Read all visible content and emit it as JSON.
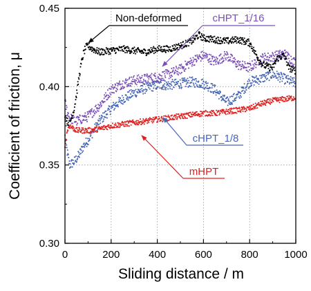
{
  "chart_data": {
    "type": "scatter",
    "title": "",
    "xlabel": "Sliding distance  /  m",
    "ylabel": "Coefficient of friction,  μ",
    "xlim": [
      0,
      1000
    ],
    "ylim": [
      0.3,
      0.45
    ],
    "x_ticks": [
      "0",
      "200",
      "400",
      "600",
      "800",
      "1000"
    ],
    "y_ticks": [
      "0.30",
      "0.35",
      "0.40",
      "0.45"
    ],
    "grid": "dotted",
    "legend": "none (series labelled by annotation arrows)",
    "series": [
      {
        "name": "Non-deformed",
        "color": "#000000",
        "label_color": "#000000",
        "points": [
          [
            0,
            0.382
          ],
          [
            10,
            0.378
          ],
          [
            20,
            0.376
          ],
          [
            30,
            0.381
          ],
          [
            40,
            0.386
          ],
          [
            50,
            0.395
          ],
          [
            60,
            0.405
          ],
          [
            70,
            0.414
          ],
          [
            80,
            0.421
          ],
          [
            90,
            0.425
          ],
          [
            100,
            0.426
          ],
          [
            120,
            0.424
          ],
          [
            150,
            0.422
          ],
          [
            200,
            0.423
          ],
          [
            250,
            0.424
          ],
          [
            300,
            0.423
          ],
          [
            350,
            0.422
          ],
          [
            400,
            0.424
          ],
          [
            450,
            0.424
          ],
          [
            500,
            0.426
          ],
          [
            550,
            0.429
          ],
          [
            580,
            0.433
          ],
          [
            600,
            0.431
          ],
          [
            650,
            0.43
          ],
          [
            700,
            0.429
          ],
          [
            750,
            0.43
          ],
          [
            800,
            0.428
          ],
          [
            830,
            0.42
          ],
          [
            850,
            0.415
          ],
          [
            870,
            0.413
          ],
          [
            900,
            0.412
          ],
          [
            920,
            0.418
          ],
          [
            950,
            0.42
          ],
          [
            970,
            0.412
          ],
          [
            1000,
            0.41
          ]
        ]
      },
      {
        "name": "cHPT_1/16",
        "color": "#7a4fb8",
        "label_color": "#7a4fb8",
        "points": [
          [
            0,
            0.39
          ],
          [
            10,
            0.384
          ],
          [
            20,
            0.38
          ],
          [
            50,
            0.378
          ],
          [
            100,
            0.381
          ],
          [
            150,
            0.388
          ],
          [
            200,
            0.398
          ],
          [
            250,
            0.402
          ],
          [
            300,
            0.404
          ],
          [
            350,
            0.405
          ],
          [
            400,
            0.406
          ],
          [
            450,
            0.408
          ],
          [
            500,
            0.411
          ],
          [
            550,
            0.416
          ],
          [
            600,
            0.42
          ],
          [
            650,
            0.416
          ],
          [
            700,
            0.42
          ],
          [
            750,
            0.414
          ],
          [
            800,
            0.412
          ],
          [
            850,
            0.418
          ],
          [
            900,
            0.419
          ],
          [
            950,
            0.421
          ],
          [
            1000,
            0.415
          ]
        ]
      },
      {
        "name": "cHPT_1/8",
        "color": "#4565b8",
        "label_color": "#4565b8",
        "points": [
          [
            0,
            0.368
          ],
          [
            10,
            0.358
          ],
          [
            20,
            0.35
          ],
          [
            40,
            0.352
          ],
          [
            60,
            0.356
          ],
          [
            80,
            0.362
          ],
          [
            100,
            0.366
          ],
          [
            150,
            0.378
          ],
          [
            200,
            0.386
          ],
          [
            250,
            0.392
          ],
          [
            300,
            0.396
          ],
          [
            350,
            0.399
          ],
          [
            400,
            0.401
          ],
          [
            450,
            0.401
          ],
          [
            500,
            0.402
          ],
          [
            550,
            0.403
          ],
          [
            600,
            0.402
          ],
          [
            650,
            0.398
          ],
          [
            700,
            0.39
          ],
          [
            750,
            0.394
          ],
          [
            800,
            0.403
          ],
          [
            850,
            0.405
          ],
          [
            900,
            0.408
          ],
          [
            950,
            0.405
          ],
          [
            1000,
            0.402
          ]
        ]
      },
      {
        "name": "mHPT",
        "color": "#e02020",
        "label_color": "#e02020",
        "points": [
          [
            0,
            0.36
          ],
          [
            10,
            0.372
          ],
          [
            20,
            0.375
          ],
          [
            50,
            0.372
          ],
          [
            100,
            0.372
          ],
          [
            150,
            0.373
          ],
          [
            200,
            0.375
          ],
          [
            250,
            0.376
          ],
          [
            300,
            0.377
          ],
          [
            350,
            0.378
          ],
          [
            400,
            0.379
          ],
          [
            450,
            0.38
          ],
          [
            500,
            0.381
          ],
          [
            550,
            0.382
          ],
          [
            600,
            0.383
          ],
          [
            650,
            0.383
          ],
          [
            700,
            0.384
          ],
          [
            750,
            0.385
          ],
          [
            800,
            0.386
          ],
          [
            850,
            0.389
          ],
          [
            900,
            0.391
          ],
          [
            950,
            0.392
          ],
          [
            1000,
            0.393
          ]
        ]
      }
    ]
  }
}
